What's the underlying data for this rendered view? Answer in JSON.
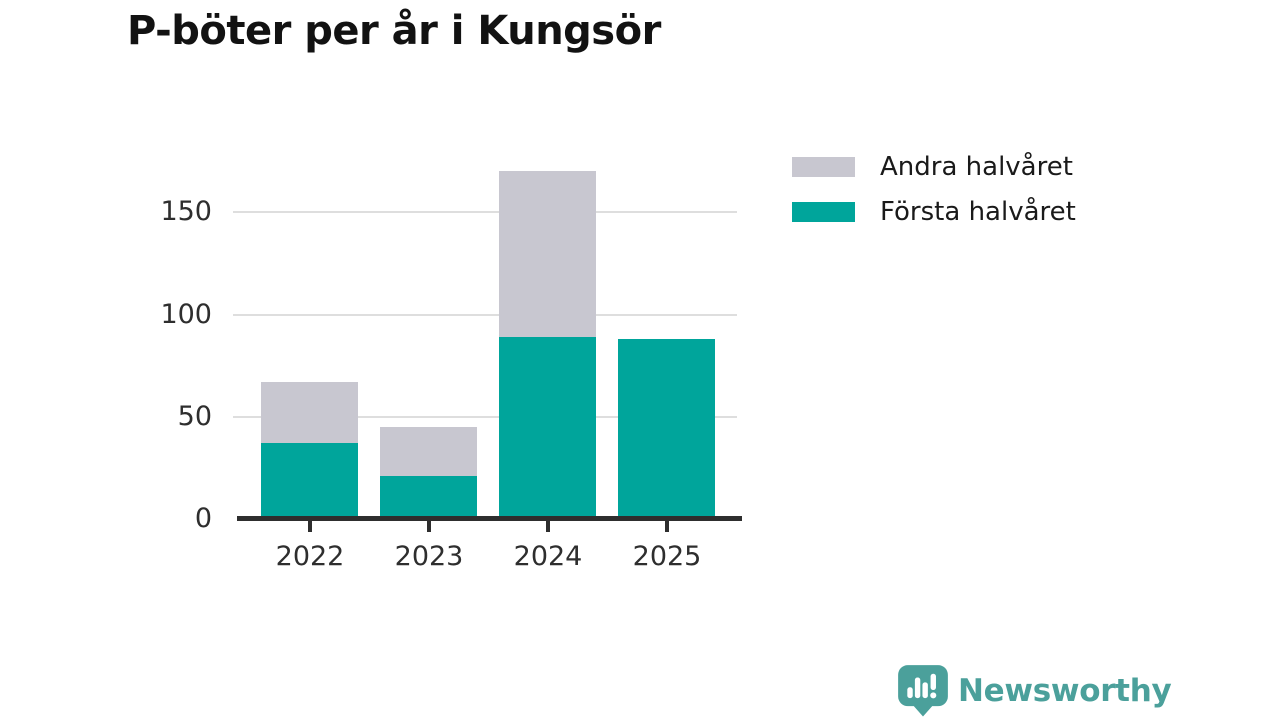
{
  "title": "P-böter per år i Kungsör",
  "colors": {
    "first_half": "#00A59B",
    "second_half": "#C8C7D0",
    "axis": "#2E2E2E",
    "gridline": "#DEDEDE",
    "brand_teal": "#4BA09B"
  },
  "legend": [
    {
      "label": "Andra halvåret",
      "color": "#C8C7D0"
    },
    {
      "label": "Första halvåret",
      "color": "#00A59B"
    }
  ],
  "chart_data": {
    "type": "bar",
    "stacked": true,
    "title": "P-böter per år i Kungsör",
    "categories": [
      "2022",
      "2023",
      "2024",
      "2025"
    ],
    "series": [
      {
        "name": "Första halvåret",
        "color": "#00A59B",
        "values": [
          37,
          21,
          89,
          88
        ]
      },
      {
        "name": "Andra halvåret",
        "color": "#C8C7D0",
        "values": [
          30,
          24,
          81,
          0
        ]
      }
    ],
    "xlabel": "",
    "ylabel": "",
    "y_ticks": [
      0,
      50,
      100,
      150
    ],
    "ylim": [
      0,
      175
    ],
    "grid": true,
    "legend_position": "top-right"
  },
  "footer": {
    "brand": "Newsworthy"
  }
}
